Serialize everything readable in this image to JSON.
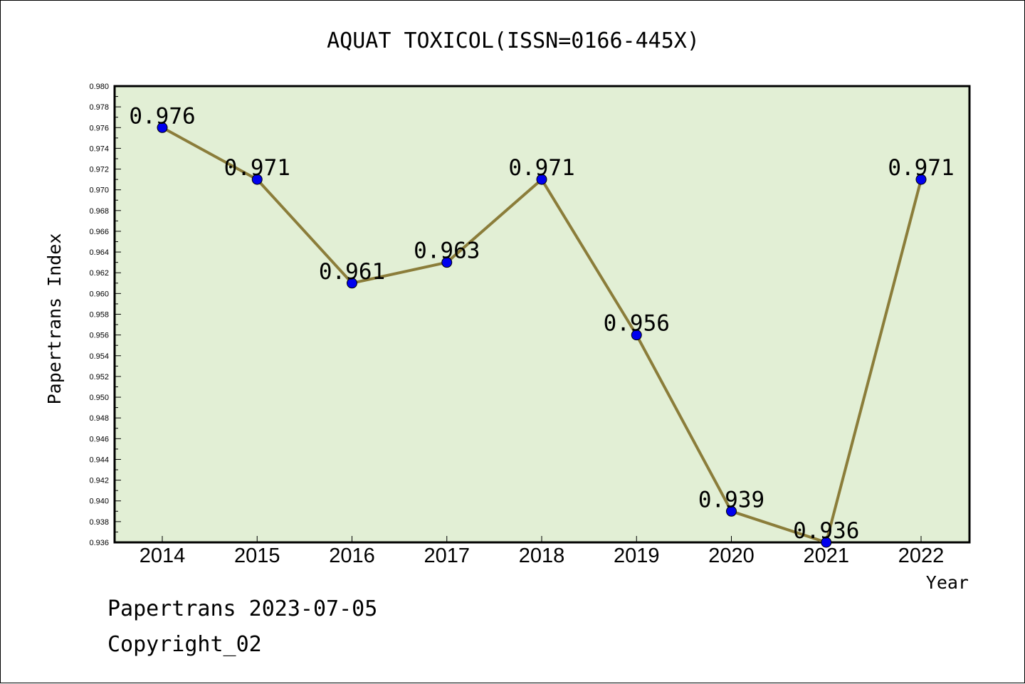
{
  "chart_data": {
    "type": "line",
    "title": "AQUAT TOXICOL(ISSN=0166-445X)",
    "xlabel": "Year",
    "ylabel": "Papertrans Index",
    "categories": [
      "2014",
      "2015",
      "2016",
      "2017",
      "2018",
      "2019",
      "2020",
      "2021",
      "2022"
    ],
    "series": [
      {
        "values": [
          0.976,
          0.971,
          0.961,
          0.963,
          0.971,
          0.956,
          0.939,
          0.936,
          0.971
        ],
        "data_labels": [
          "0.976",
          "0.971",
          "0.961",
          "0.963",
          "0.971",
          "0.956",
          "0.939",
          "0.936",
          "0.971"
        ]
      }
    ],
    "ylim": [
      0.936,
      0.98
    ],
    "ytick_labels": [
      "0.980",
      "0.978",
      "0.976",
      "0.974",
      "0.972",
      "0.970",
      "0.968",
      "0.966",
      "0.964",
      "0.962",
      "0.960",
      "0.958",
      "0.956",
      "0.954",
      "0.952",
      "0.950",
      "0.948",
      "0.946",
      "0.944",
      "0.942",
      "0.940",
      "0.938",
      "0.936"
    ],
    "grid": false,
    "colors": {
      "plot_background": "#e2efd5",
      "line": "#8b7d3a",
      "marker": "#0000ee"
    }
  },
  "footer": {
    "line1": "Papertrans 2023-07-05",
    "line2": "Copyright_02"
  }
}
